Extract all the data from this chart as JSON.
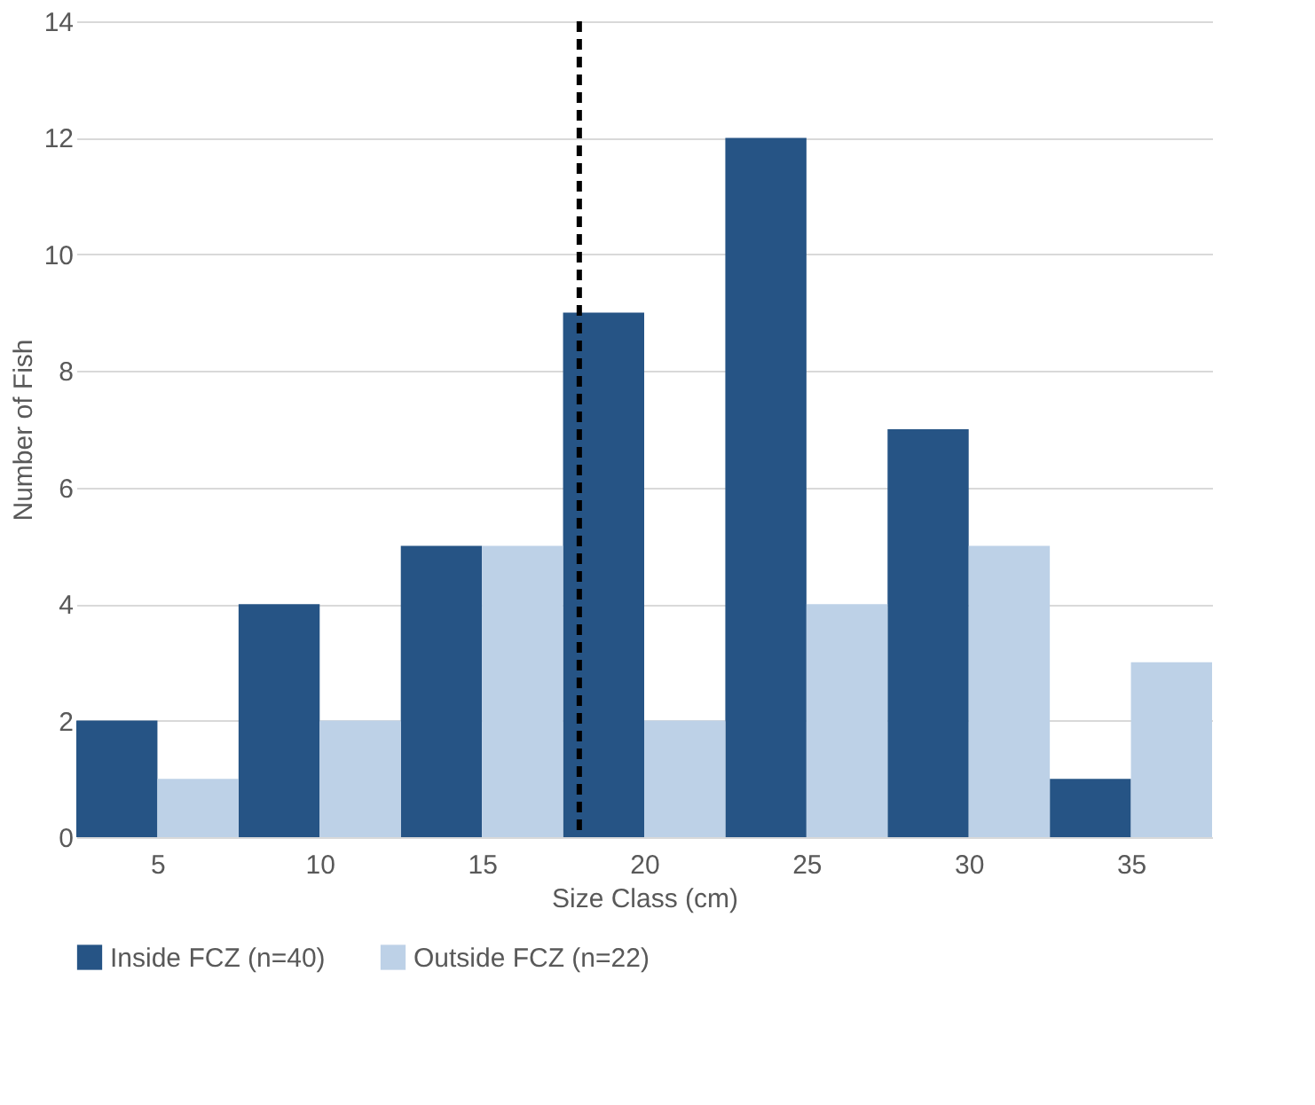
{
  "chart_data": {
    "type": "bar",
    "xlabel": "Size Class (cm)",
    "ylabel": "Number of Fish",
    "x": [
      5,
      10,
      15,
      20,
      25,
      30,
      35
    ],
    "xlim": [
      2.5,
      37.5
    ],
    "xticks": [
      5,
      10,
      15,
      20,
      25,
      30,
      35
    ],
    "ylim": [
      0,
      14
    ],
    "yticks": [
      0,
      2,
      4,
      6,
      8,
      10,
      12,
      14
    ],
    "grid": "y",
    "legend": "bottom",
    "series": [
      {
        "name": "Inside FCZ (n=40)",
        "color": "#265485",
        "values": [
          2,
          4,
          5,
          9,
          12,
          7,
          1
        ]
      },
      {
        "name": "Outside FCZ (n=22)",
        "color": "#bdd1e7",
        "values": [
          1,
          2,
          5,
          2,
          4,
          5,
          3
        ]
      }
    ],
    "ref_lines": [
      {
        "axis": "x",
        "value": 18,
        "color": "#000000",
        "line_style": "dashed"
      }
    ]
  }
}
